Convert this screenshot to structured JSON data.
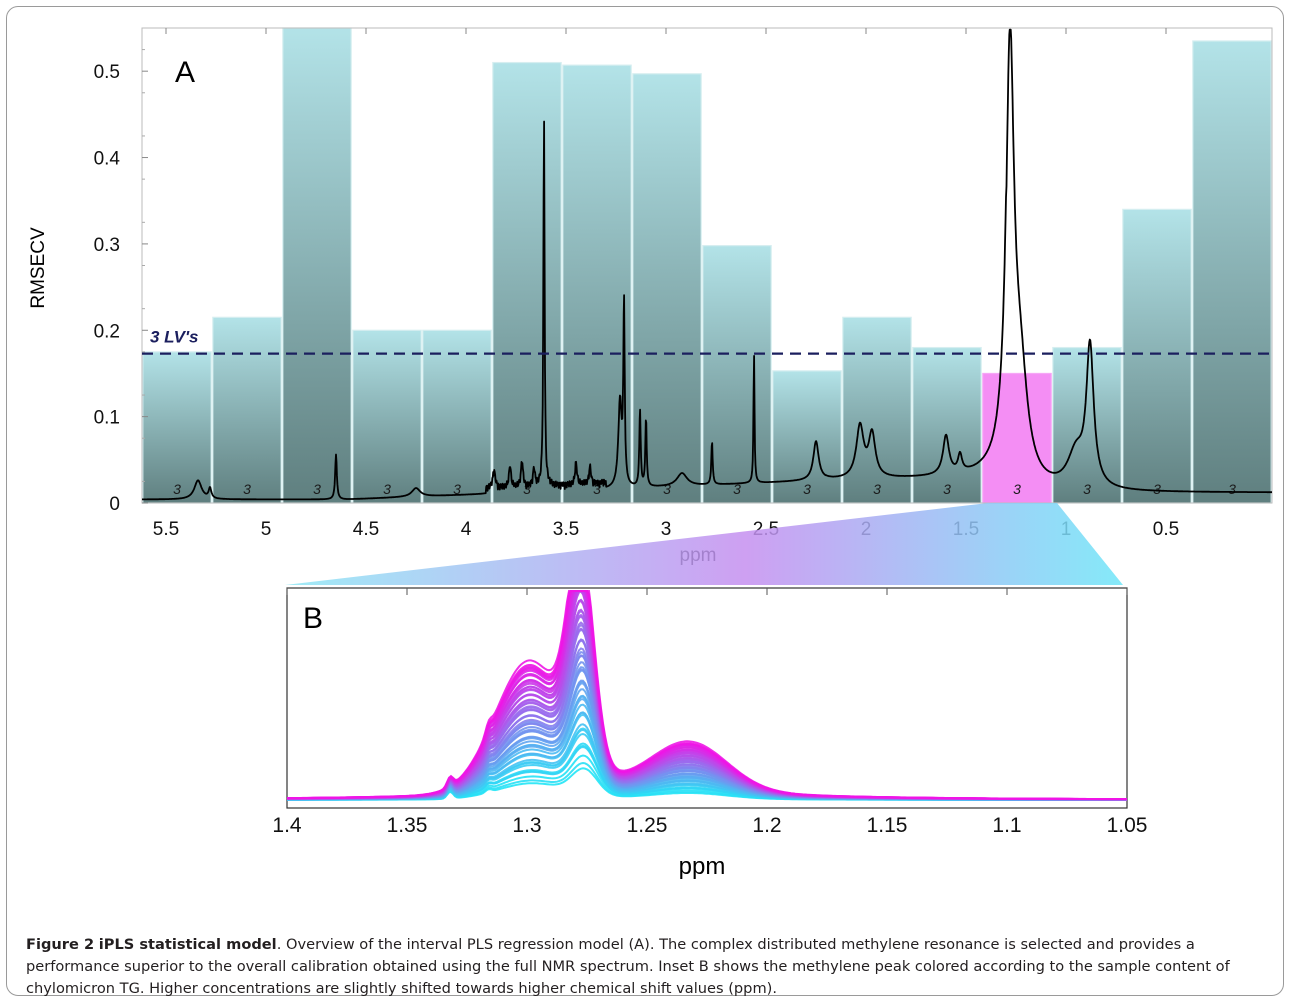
{
  "caption": {
    "label": "Figure 2",
    "title": "iPLS statistical model",
    "text": ". Overview of the interval PLS regression model (A). The complex distributed methylene resonance is selected and provides a performance superior to the overall calibration obtained using the full NMR spectrum. Inset B shows the methylene peak colored according to the sample content of chylomicron TG. Higher concentrations are slightly shifted towards higher chemical shift values (ppm)."
  },
  "colors": {
    "bar_top": "#b3e3e8",
    "bar_bottom": "#5f7f7f",
    "selected_bar": "#f48ef4",
    "spectrum": "#000000",
    "reference_line": "#1b1f5e",
    "inset_low": "#22e6f6",
    "inset_high": "#f014e6"
  },
  "chart_data": [
    {
      "type": "bar",
      "panel_label": "A",
      "xlabel": "ppm",
      "ylabel": "RMSECV",
      "xlim": [
        5.62,
        -0.03
      ],
      "ylim": [
        0,
        0.55
      ],
      "xticks": [
        5.5,
        5,
        4.5,
        4,
        3.5,
        3,
        2.5,
        2,
        1.5,
        1,
        0.5
      ],
      "yticks": [
        0,
        0.1,
        0.2,
        0.3,
        0.4,
        0.5
      ],
      "interval_edges": [
        5.62,
        5.27,
        4.92,
        4.57,
        4.22,
        3.87,
        3.52,
        3.17,
        2.82,
        2.47,
        2.12,
        1.77,
        1.42,
        1.07,
        0.72,
        0.37,
        -0.03
      ],
      "values": [
        0.175,
        0.215,
        0.55,
        0.2,
        0.2,
        0.51,
        0.507,
        0.497,
        0.298,
        0.153,
        0.215,
        0.18,
        0.15,
        0.18,
        0.34,
        0.535
      ],
      "latent_variables": [
        "3",
        "3",
        "3",
        "3",
        "3",
        "3",
        "3",
        "3",
        "3",
        "3",
        "3",
        "3",
        "3",
        "3",
        "3",
        "3"
      ],
      "selected_interval": 12,
      "reference_line": {
        "value": 0.173,
        "label": "3 LV's"
      },
      "spectrum_scale_note": "",
      "spectrum_peaks": [
        {
          "ppm": 5.34,
          "height": 0.022,
          "width": 0.022
        },
        {
          "ppm": 5.28,
          "height": 0.012,
          "width": 0.008
        },
        {
          "ppm": 4.65,
          "height": 0.052,
          "width": 0.005
        },
        {
          "ppm": 4.25,
          "height": 0.01,
          "width": 0.025
        },
        {
          "ppm": 3.86,
          "height": 0.02,
          "width": 0.008
        },
        {
          "ppm": 3.78,
          "height": 0.025,
          "width": 0.006
        },
        {
          "ppm": 3.72,
          "height": 0.03,
          "width": 0.006
        },
        {
          "ppm": 3.66,
          "height": 0.02,
          "width": 0.006
        },
        {
          "ppm": 3.61,
          "height": 0.43,
          "width": 0.0035
        },
        {
          "ppm": 3.45,
          "height": 0.025,
          "width": 0.006
        },
        {
          "ppm": 3.38,
          "height": 0.02,
          "width": 0.006
        },
        {
          "ppm": 3.23,
          "height": 0.1,
          "width": 0.01
        },
        {
          "ppm": 3.21,
          "height": 0.21,
          "width": 0.004
        },
        {
          "ppm": 3.13,
          "height": 0.09,
          "width": 0.004
        },
        {
          "ppm": 3.1,
          "height": 0.08,
          "width": 0.004
        },
        {
          "ppm": 2.92,
          "height": 0.015,
          "width": 0.03
        },
        {
          "ppm": 2.77,
          "height": 0.05,
          "width": 0.004
        },
        {
          "ppm": 2.56,
          "height": 0.15,
          "width": 0.003
        },
        {
          "ppm": 2.25,
          "height": 0.045,
          "width": 0.016
        },
        {
          "ppm": 2.03,
          "height": 0.06,
          "width": 0.022
        },
        {
          "ppm": 1.97,
          "height": 0.05,
          "width": 0.02
        },
        {
          "ppm": 1.6,
          "height": 0.045,
          "width": 0.018
        },
        {
          "ppm": 1.53,
          "height": 0.02,
          "width": 0.012
        },
        {
          "ppm": 1.28,
          "height": 0.49,
          "width": 0.024
        },
        {
          "ppm": 1.23,
          "height": 0.12,
          "width": 0.045
        },
        {
          "ppm": 0.88,
          "height": 0.16,
          "width": 0.022
        },
        {
          "ppm": 0.95,
          "height": 0.04,
          "width": 0.05
        }
      ]
    },
    {
      "type": "line",
      "panel_label": "B",
      "xlabel": "ppm",
      "ylabel": "",
      "xlim": [
        1.4,
        1.05
      ],
      "xticks": [
        "1.4",
        "1.35",
        "1.3",
        "1.25",
        "1.2",
        "1.15",
        "1.1",
        "1.05"
      ],
      "series_count": 60,
      "peak_ppm": 1.276,
      "shoulders_ppm": [
        1.332,
        1.316,
        1.3,
        1.22
      ],
      "color_scale": [
        "#22e6f6",
        "#f014e6"
      ]
    }
  ]
}
